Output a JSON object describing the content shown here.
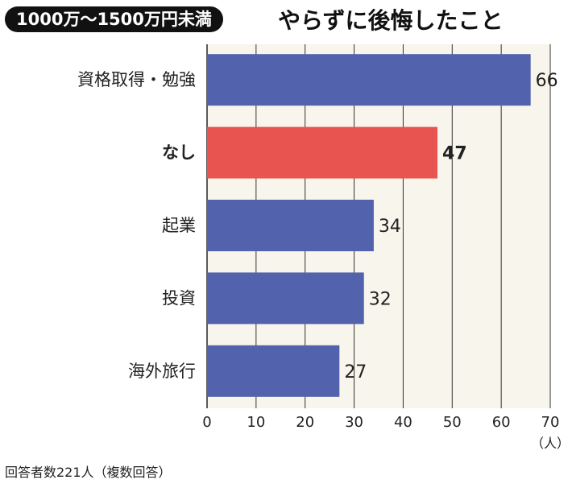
{
  "header": {
    "badge": "1000万〜1500万円未満",
    "title": "やらずに後悔したこと"
  },
  "chart_data": {
    "type": "bar",
    "orientation": "horizontal",
    "categories": [
      "資格取得・勉強",
      "なし",
      "起業",
      "投資",
      "海外旅行"
    ],
    "values": [
      66,
      47,
      34,
      32,
      27
    ],
    "highlight": "なし",
    "xlim": [
      0,
      70
    ],
    "xticks": [
      "0",
      "10",
      "20",
      "30",
      "40",
      "50",
      "60",
      "70"
    ],
    "unit": "（人）",
    "grid": true,
    "colors": {
      "bar": "#5262ad",
      "highlight": "#e85550",
      "plot_bg": "#f8f5ec",
      "grid": "#333333"
    }
  },
  "footnote": "回答者数221人（複数回答）"
}
